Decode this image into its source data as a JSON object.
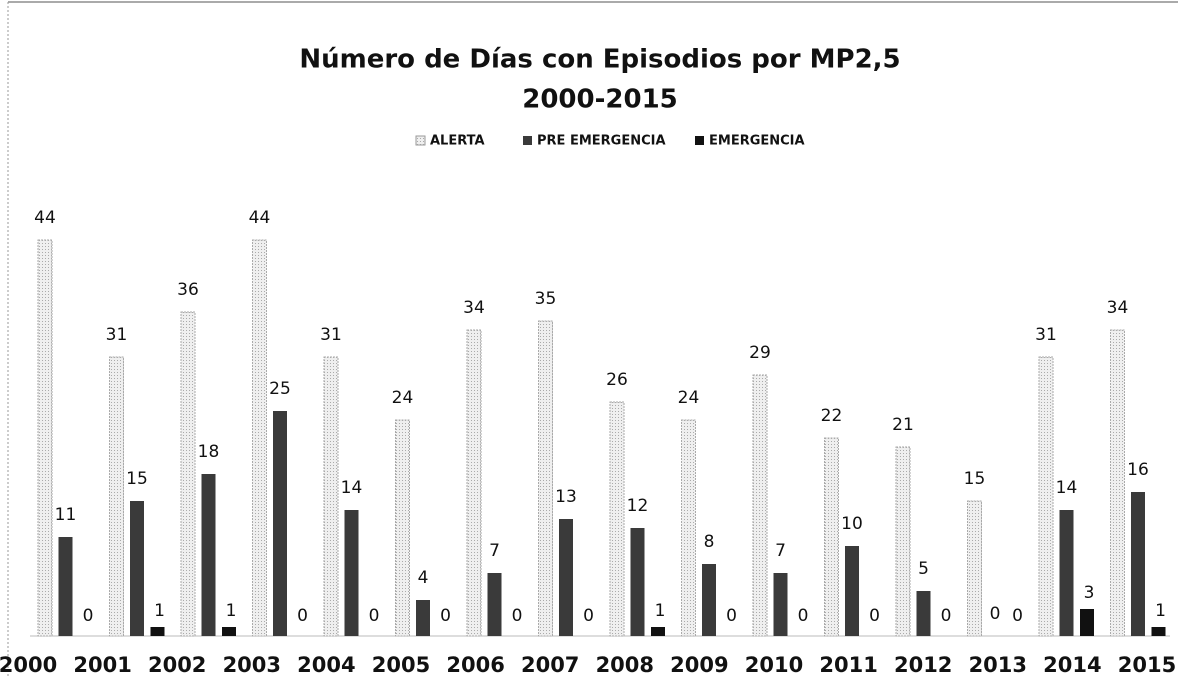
{
  "chart_data": {
    "type": "bar",
    "title": "Número de Días con Episodios por MP2,5",
    "subtitle": "2000-2015",
    "categories": [
      "2000",
      "2001",
      "2002",
      "2003",
      "2004",
      "2005",
      "2006",
      "2007",
      "2008",
      "2009",
      "2010",
      "2011",
      "2012",
      "2013",
      "2014",
      "2015"
    ],
    "series": [
      {
        "name": "ALERTA",
        "color": "#e4e4e4",
        "values": [
          44,
          31,
          36,
          44,
          31,
          24,
          34,
          35,
          26,
          24,
          29,
          22,
          21,
          15,
          31,
          34
        ]
      },
      {
        "name": "PRE EMERGENCIA",
        "color": "#3a3a3a",
        "values": [
          11,
          15,
          18,
          25,
          14,
          4,
          7,
          13,
          12,
          8,
          7,
          10,
          5,
          0,
          14,
          16
        ]
      },
      {
        "name": "EMERGENCIA",
        "color": "#111111",
        "values": [
          0,
          1,
          1,
          0,
          0,
          0,
          0,
          0,
          1,
          0,
          0,
          0,
          0,
          0,
          3,
          1
        ]
      }
    ],
    "legend": "top"
  }
}
